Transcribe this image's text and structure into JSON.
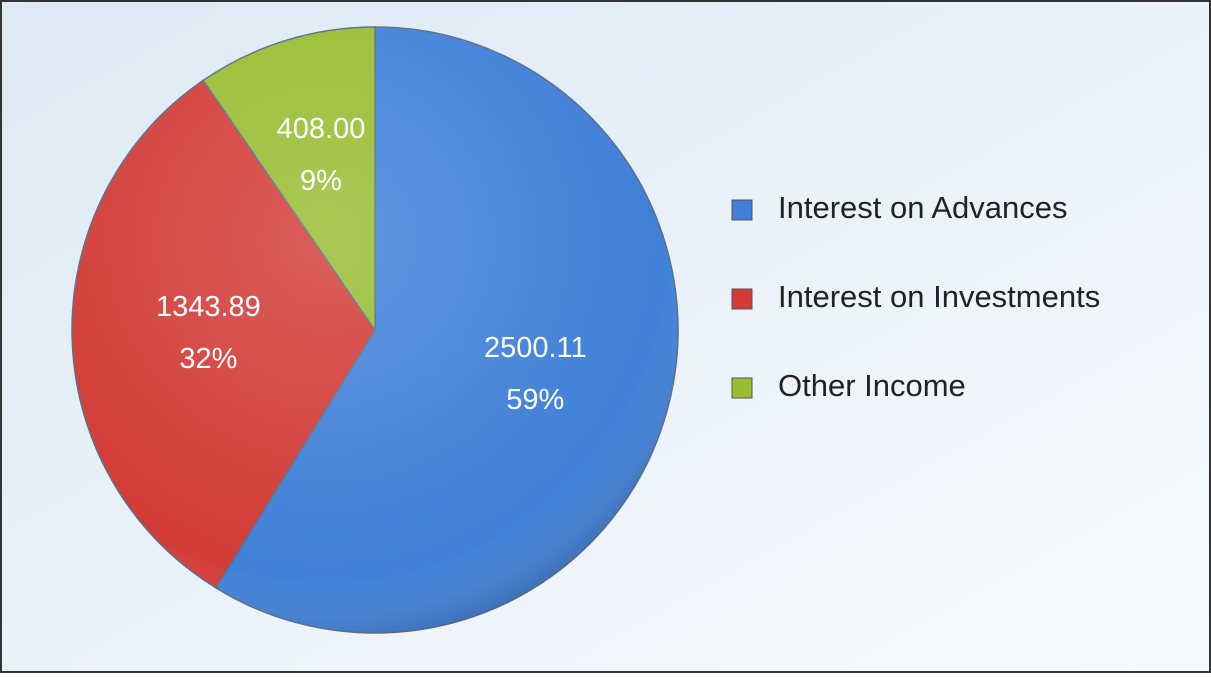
{
  "chart_data": {
    "type": "pie",
    "categories": [
      "Interest on Advances",
      "Interest on Investments",
      "Other Income"
    ],
    "values": [
      2500.11,
      1343.89,
      408
    ],
    "value_labels": [
      "2500.11",
      "1343.89",
      "408.00"
    ],
    "percent_labels": [
      "59%",
      "32%",
      "9%"
    ],
    "colors": [
      "#3f80d8",
      "#d33b36",
      "#97bd30"
    ],
    "legend": "right"
  }
}
